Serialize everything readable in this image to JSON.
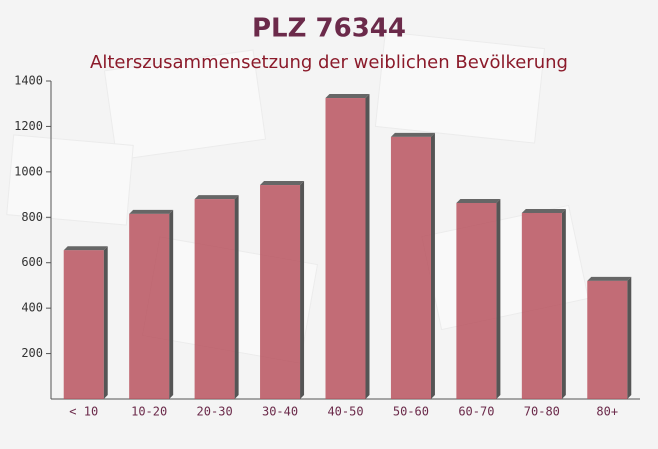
{
  "chart_data": {
    "type": "bar",
    "title": "PLZ 76344",
    "subtitle": "Alterszusammensetzung der weiblichen Bevölkerung",
    "categories": [
      "< 10",
      "10-20",
      "20-30",
      "30-40",
      "40-50",
      "50-60",
      "60-70",
      "70-80",
      "80+"
    ],
    "values": [
      655,
      815,
      880,
      942,
      1325,
      1154,
      863,
      819,
      520
    ],
    "color": "#b8535f",
    "ylim": [
      0,
      1400
    ],
    "yticks": [
      200,
      400,
      600,
      800,
      1000,
      1200,
      1400
    ],
    "grid": false
  }
}
